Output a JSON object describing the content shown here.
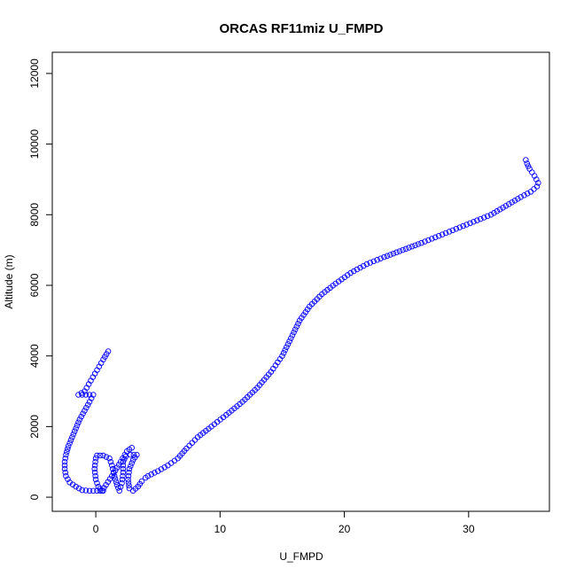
{
  "chart_data": {
    "type": "scatter",
    "title": "ORCAS RF11miz U_FMPD",
    "xlabel": "U_FMPD",
    "ylabel": "Altitude (m)",
    "xlim": [
      -3.5,
      36.5
    ],
    "ylim": [
      -400,
      12600
    ],
    "xticks": [
      0,
      10,
      20,
      30
    ],
    "yticks": [
      0,
      2000,
      4000,
      6000,
      8000,
      10000,
      12000
    ],
    "marker": "open-circle",
    "colors": {
      "points": "#0000ff",
      "axes": "#000000",
      "background": "#ffffff"
    },
    "series": [
      {
        "values_xy": [
          [
            4.2,
            600
          ],
          [
            5.0,
            740
          ],
          [
            5.8,
            900
          ],
          [
            6.6,
            1100
          ],
          [
            7.3,
            1380
          ],
          [
            8.2,
            1700
          ],
          [
            9.3,
            2000
          ],
          [
            10.5,
            2330
          ],
          [
            11.8,
            2700
          ],
          [
            13.0,
            3100
          ],
          [
            14.1,
            3550
          ],
          [
            15.0,
            4000
          ],
          [
            15.7,
            4500
          ],
          [
            16.4,
            5000
          ],
          [
            17.2,
            5400
          ],
          [
            18.2,
            5750
          ],
          [
            19.3,
            6050
          ],
          [
            20.5,
            6350
          ],
          [
            21.8,
            6600
          ],
          [
            23.2,
            6800
          ],
          [
            24.7,
            7000
          ],
          [
            26.2,
            7200
          ],
          [
            27.6,
            7400
          ],
          [
            29.0,
            7600
          ],
          [
            30.4,
            7800
          ],
          [
            31.8,
            8000
          ],
          [
            33.0,
            8250
          ],
          [
            34.2,
            8500
          ],
          [
            35.0,
            8650
          ],
          [
            35.5,
            8800
          ],
          [
            35.6,
            8900
          ],
          [
            35.3,
            9100
          ],
          [
            34.9,
            9300
          ],
          [
            34.7,
            9450
          ],
          [
            34.6,
            9550
          ]
        ]
      },
      {
        "values_xy": [
          [
            1.0,
            4130
          ],
          [
            0.6,
            3900
          ],
          [
            0.1,
            3600
          ],
          [
            -0.4,
            3300
          ],
          [
            -0.9,
            3000
          ],
          [
            -1.4,
            2900
          ],
          [
            -0.8,
            2900
          ],
          [
            -0.2,
            2900
          ],
          [
            -0.5,
            2700
          ],
          [
            -0.9,
            2450
          ],
          [
            -1.3,
            2200
          ],
          [
            -1.6,
            1950
          ],
          [
            -1.9,
            1700
          ],
          [
            -2.2,
            1450
          ],
          [
            -2.4,
            1200
          ],
          [
            -2.5,
            1000
          ],
          [
            -2.5,
            800
          ],
          [
            -2.4,
            600
          ],
          [
            -2.1,
            420
          ],
          [
            -1.6,
            300
          ],
          [
            -1.1,
            200
          ],
          [
            -0.5,
            180
          ],
          [
            0.1,
            180
          ],
          [
            0.6,
            180
          ]
        ]
      },
      {
        "values_xy": [
          [
            0.1,
            1180
          ],
          [
            0.6,
            1180
          ],
          [
            1.1,
            1100
          ],
          [
            1.3,
            900
          ],
          [
            1.5,
            600
          ],
          [
            1.7,
            350
          ],
          [
            1.9,
            180
          ],
          [
            2.1,
            400
          ],
          [
            2.2,
            700
          ],
          [
            2.2,
            1000
          ],
          [
            2.4,
            1150
          ],
          [
            2.8,
            1200
          ],
          [
            3.3,
            1200
          ],
          [
            3.0,
            1050
          ],
          [
            2.7,
            800
          ],
          [
            2.6,
            500
          ],
          [
            2.7,
            250
          ],
          [
            3.0,
            180
          ],
          [
            3.4,
            300
          ],
          [
            3.7,
            450
          ],
          [
            4.0,
            550
          ]
        ]
      },
      {
        "values_xy": [
          [
            0.0,
            1100
          ],
          [
            -0.1,
            800
          ],
          [
            0.0,
            500
          ],
          [
            0.2,
            300
          ],
          [
            0.5,
            180
          ],
          [
            1.3,
            600
          ],
          [
            2.0,
            1000
          ],
          [
            2.5,
            1300
          ],
          [
            2.9,
            1400
          ]
        ]
      }
    ]
  }
}
